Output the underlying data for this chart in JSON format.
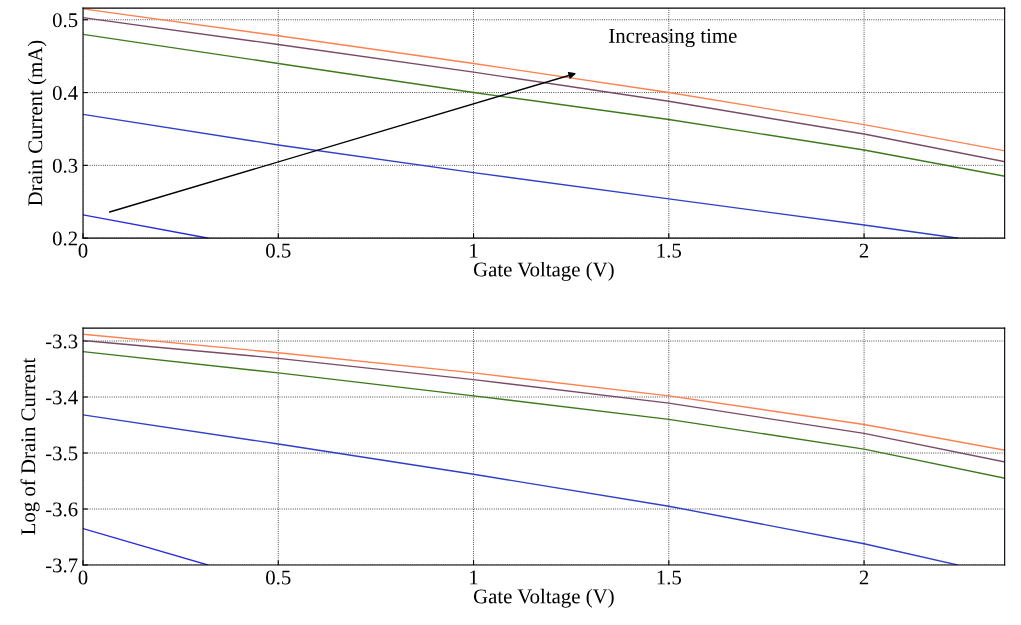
{
  "chart_data": [
    {
      "type": "line",
      "xlabel": "Gate Voltage (V)",
      "ylabel": "Drain Current (mA)",
      "annotations": [
        "Increasing time"
      ],
      "xlim": [
        0,
        2.36
      ],
      "ylim": [
        0.2,
        0.516
      ],
      "xticks": [
        0,
        0.5,
        1,
        1.5,
        2
      ],
      "yticks": [
        0.2,
        0.3,
        0.4,
        0.5
      ],
      "grid": true,
      "legend": false,
      "line_style": "solid",
      "marker": "none",
      "series": [
        {
          "color": "#2a2ae0",
          "x": [
            0,
            0.32
          ],
          "values": [
            0.232,
            0.2
          ]
        },
        {
          "color": "#2f3fc8",
          "x": [
            0,
            0.5,
            1,
            1.5,
            2,
            2.24
          ],
          "values": [
            0.37,
            0.328,
            0.29,
            0.254,
            0.218,
            0.2
          ]
        },
        {
          "color": "#3d7a1c",
          "x": [
            0,
            0.5,
            1,
            1.5,
            2,
            2.36
          ],
          "values": [
            0.48,
            0.44,
            0.4,
            0.363,
            0.321,
            0.285
          ]
        },
        {
          "color": "#7b4a68",
          "x": [
            0,
            0.5,
            1,
            1.5,
            2,
            2.36
          ],
          "values": [
            0.503,
            0.466,
            0.428,
            0.388,
            0.343,
            0.305
          ]
        },
        {
          "color": "#ff8050",
          "x": [
            0,
            0.5,
            1,
            1.5,
            2,
            2.36
          ],
          "values": [
            0.515,
            0.478,
            0.44,
            0.4,
            0.356,
            0.32
          ]
        }
      ]
    },
    {
      "type": "line",
      "xlabel": "Gate Voltage (V)",
      "ylabel": "Log of Drain Current",
      "xlim": [
        0,
        2.36
      ],
      "ylim": [
        -3.7,
        -3.277
      ],
      "xticks": [
        0,
        0.5,
        1,
        1.5,
        2
      ],
      "yticks": [
        -3.7,
        -3.6,
        -3.5,
        -3.4,
        -3.3
      ],
      "grid": true,
      "legend": false,
      "line_style": "solid",
      "marker": "none",
      "series": [
        {
          "color": "#2a2ae0",
          "x": [
            0,
            0.32
          ],
          "values": [
            -3.635,
            -3.7
          ]
        },
        {
          "color": "#2f3fc8",
          "x": [
            0,
            0.5,
            1,
            1.5,
            2,
            2.24
          ],
          "values": [
            -3.432,
            -3.484,
            -3.538,
            -3.595,
            -3.662,
            -3.7
          ]
        },
        {
          "color": "#3d7a1c",
          "x": [
            0,
            0.5,
            1,
            1.5,
            2,
            2.36
          ],
          "values": [
            -3.319,
            -3.357,
            -3.398,
            -3.44,
            -3.493,
            -3.545
          ]
        },
        {
          "color": "#7b4a68",
          "x": [
            0,
            0.5,
            1,
            1.5,
            2,
            2.36
          ],
          "values": [
            -3.299,
            -3.331,
            -3.369,
            -3.411,
            -3.465,
            -3.516
          ]
        },
        {
          "color": "#ff8050",
          "x": [
            0,
            0.5,
            1,
            1.5,
            2,
            2.36
          ],
          "values": [
            -3.288,
            -3.321,
            -3.357,
            -3.398,
            -3.449,
            -3.495
          ]
        }
      ]
    }
  ]
}
